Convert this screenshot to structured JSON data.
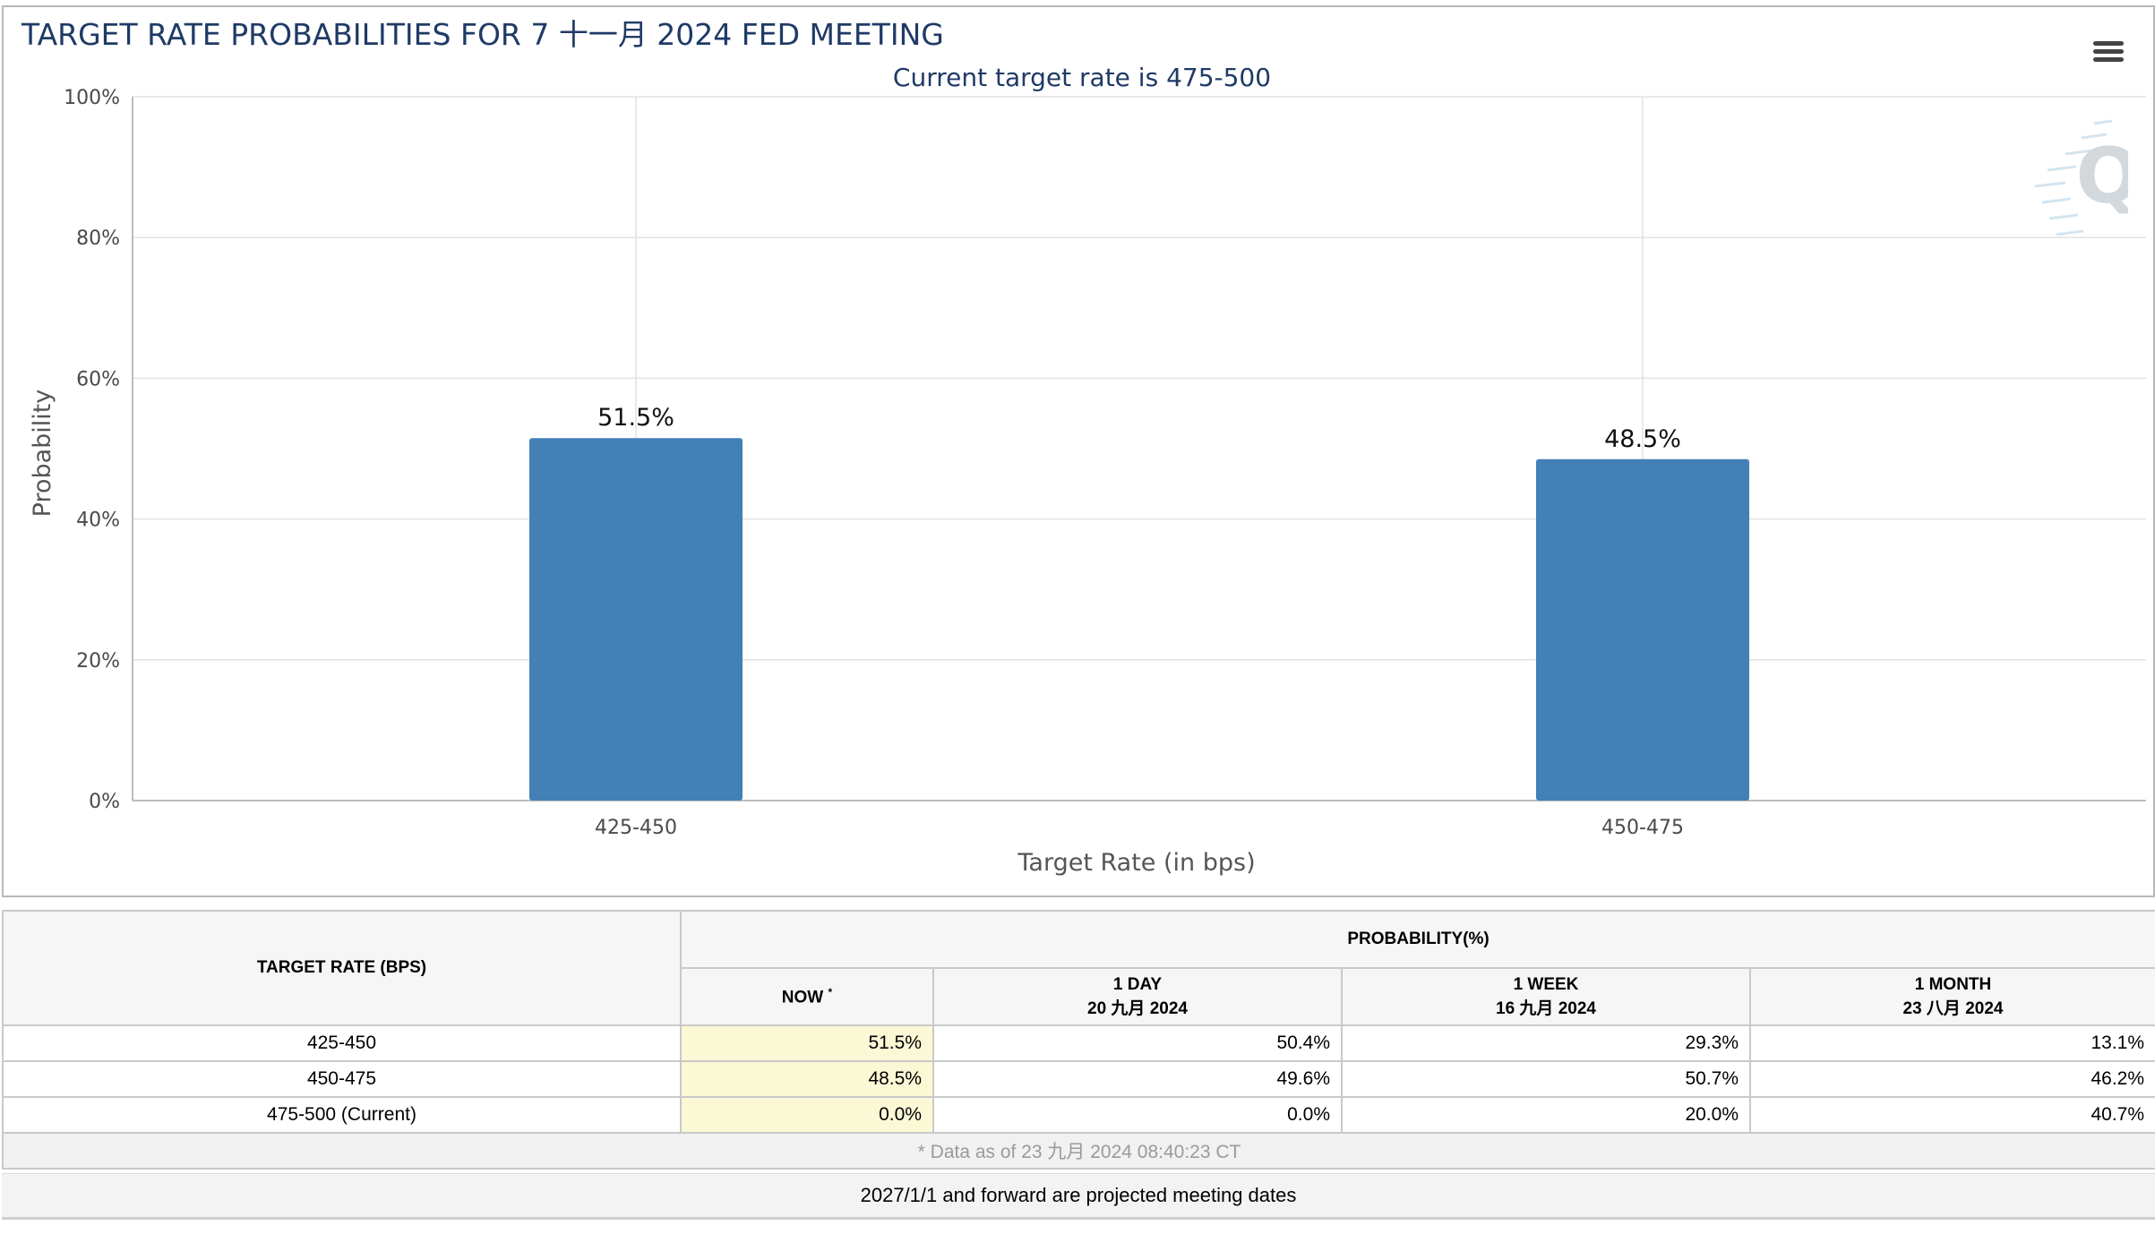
{
  "chart_data": {
    "type": "bar",
    "title": "TARGET RATE PROBABILITIES FOR 7 十一月 2024 FED MEETING",
    "subtitle": "Current target rate is 475-500",
    "xlabel": "Target Rate (in bps)",
    "ylabel": "Probability",
    "categories": [
      "425-450",
      "450-475"
    ],
    "values": [
      51.5,
      48.5
    ],
    "data_labels": [
      "51.5%",
      "48.5%"
    ],
    "ylim": [
      0,
      100
    ],
    "yticks": [
      "0%",
      "20%",
      "40%",
      "60%",
      "80%",
      "100%"
    ],
    "grid": true,
    "legend": "none",
    "bar_color": "#4380b5"
  },
  "menu": {
    "icon": "hamburger-menu-icon"
  },
  "watermark": {
    "icon": "quikstrike-logo-icon",
    "letter": "Q"
  },
  "table": {
    "target_rate_header": "TARGET RATE (BPS)",
    "probability_header": "PROBABILITY(%)",
    "columns": [
      {
        "label": "NOW",
        "marker": "*",
        "date": ""
      },
      {
        "label": "1 DAY",
        "date": "20 九月 2024"
      },
      {
        "label": "1 WEEK",
        "date": "16 九月 2024"
      },
      {
        "label": "1 MONTH",
        "date": "23 八月 2024"
      }
    ],
    "rows": [
      {
        "rate": "425-450",
        "now": "51.5%",
        "day": "50.4%",
        "week": "29.3%",
        "month": "13.1%"
      },
      {
        "rate": "450-475",
        "now": "48.5%",
        "day": "49.6%",
        "week": "50.7%",
        "month": "46.2%"
      },
      {
        "rate": "475-500 (Current)",
        "now": "0.0%",
        "day": "0.0%",
        "week": "20.0%",
        "month": "40.7%"
      }
    ],
    "data_as_of": "* Data as of 23 九月 2024 08:40:23 CT"
  },
  "footnote": "2027/1/1 and forward are projected meeting dates",
  "colors": {
    "title": "#1f3a66",
    "bar": "#4380b5",
    "now_highlight": "#fbf8d6"
  }
}
